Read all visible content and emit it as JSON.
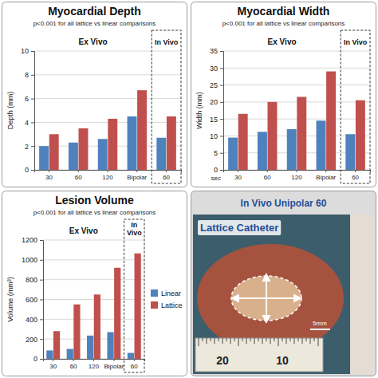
{
  "chart_data": [
    {
      "type": "bar",
      "title": "Myocardial Depth",
      "subtitle": "p<0.001 for all lattice vs linear comparisons",
      "categories": [
        "30",
        "60",
        "120",
        "Bipolar",
        "60"
      ],
      "series": [
        {
          "name": "Linear",
          "color": "#4f81bd",
          "values": [
            2.0,
            2.3,
            2.6,
            4.5,
            2.7
          ]
        },
        {
          "name": "Lattice",
          "color": "#c0504d",
          "values": [
            3.0,
            3.5,
            4.3,
            6.7,
            4.5
          ]
        }
      ],
      "ylabel": "Depth (mm)",
      "ylim": [
        0,
        10
      ],
      "yticks": [
        0,
        2,
        4,
        6,
        8,
        10
      ],
      "grid": true,
      "annotations": {
        "ex_vivo": "Ex Vivo",
        "in_vivo": "In Vivo"
      }
    },
    {
      "type": "bar",
      "title": "Myocardial Width",
      "subtitle": "p<0.001 for all lattice vs linear comparisons",
      "categories": [
        "30",
        "60",
        "120",
        "Bipolar",
        "60"
      ],
      "series": [
        {
          "name": "Linear",
          "color": "#4f81bd",
          "values": [
            9.5,
            11.2,
            12.0,
            14.5,
            10.5
          ]
        },
        {
          "name": "Lattice",
          "color": "#c0504d",
          "values": [
            16.5,
            20.0,
            21.5,
            29.0,
            20.5
          ]
        }
      ],
      "xlabel": "sec",
      "ylabel": "Width (mm)",
      "ylim": [
        0,
        35
      ],
      "yticks": [
        0,
        5,
        10,
        15,
        20,
        25,
        30,
        35
      ],
      "grid": true,
      "annotations": {
        "ex_vivo": "Ex Vivo",
        "in_vivo": "In Vivo"
      }
    },
    {
      "type": "bar",
      "title": "Lesion Volume",
      "subtitle": "p<0.001 for all lattice vs linear comparisons",
      "categories": [
        "30",
        "60",
        "120",
        "Bipolar",
        "60"
      ],
      "series": [
        {
          "name": "Linear",
          "color": "#4f81bd",
          "values": [
            85,
            100,
            235,
            270,
            60
          ]
        },
        {
          "name": "Lattice",
          "color": "#c0504d",
          "values": [
            280,
            550,
            650,
            920,
            1065
          ]
        }
      ],
      "ylabel": "Volume (mm³)",
      "ylim": [
        0,
        1200
      ],
      "yticks": [
        0,
        200,
        400,
        600,
        800,
        1000,
        1200
      ],
      "grid": true,
      "legend": "right",
      "annotations": {
        "ex_vivo": "Ex Vivo",
        "in_vivo": "In Vivo"
      }
    }
  ],
  "image_panel": {
    "title": "In Vivo Unipolar 60",
    "caption": "Lattice Catheter",
    "scale_bar": "5mm",
    "ruler_labels": [
      "20",
      "10"
    ]
  }
}
